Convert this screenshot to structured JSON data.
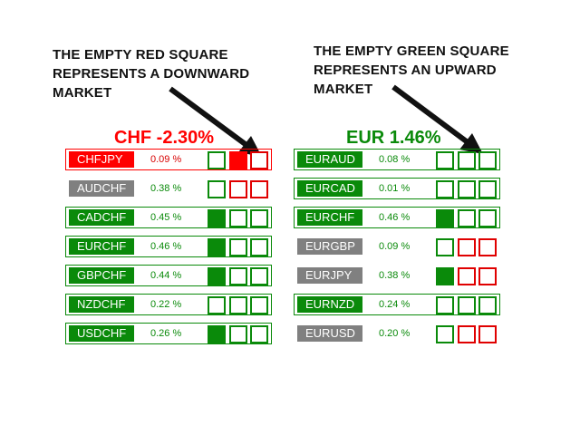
{
  "annotations": {
    "left": [
      "THE EMPTY RED SQUARE",
      "REPRESENTS A DOWNWARD",
      "MARKET"
    ],
    "right": [
      "THE EMPTY GREEN SQUARE",
      "REPRESENTS AN UPWARD",
      "MARKET"
    ]
  },
  "colors": {
    "red": "#ff0000",
    "green": "#0a8a0a",
    "gray": "#808080"
  },
  "panels": [
    {
      "heading": "CHF -2.30%",
      "heading_color": "red",
      "rows": [
        {
          "symbol": "CHFJPY",
          "percent": "0.09 %",
          "symbol_bg": "red",
          "percent_color": "red",
          "border": "red",
          "squares": [
            "empty-green",
            "filled-red",
            "empty-red"
          ]
        },
        {
          "symbol": "AUDCHF",
          "percent": "0.38 %",
          "symbol_bg": "gray",
          "percent_color": "green",
          "border": "none",
          "squares": [
            "empty-green",
            "empty-red",
            "empty-red"
          ]
        },
        {
          "symbol": "CADCHF",
          "percent": "0.45 %",
          "symbol_bg": "green",
          "percent_color": "green",
          "border": "green",
          "squares": [
            "filled-green",
            "empty-green",
            "empty-green"
          ]
        },
        {
          "symbol": "EURCHF",
          "percent": "0.46 %",
          "symbol_bg": "green",
          "percent_color": "green",
          "border": "green",
          "squares": [
            "filled-green",
            "empty-green",
            "empty-green"
          ]
        },
        {
          "symbol": "GBPCHF",
          "percent": "0.44 %",
          "symbol_bg": "green",
          "percent_color": "green",
          "border": "green",
          "squares": [
            "filled-green",
            "empty-green",
            "empty-green"
          ]
        },
        {
          "symbol": "NZDCHF",
          "percent": "0.22 %",
          "symbol_bg": "green",
          "percent_color": "green",
          "border": "green",
          "squares": [
            "empty-green",
            "empty-green",
            "empty-green"
          ]
        },
        {
          "symbol": "USDCHF",
          "percent": "0.26 %",
          "symbol_bg": "green",
          "percent_color": "green",
          "border": "green",
          "squares": [
            "filled-green",
            "empty-green",
            "empty-green"
          ]
        }
      ]
    },
    {
      "heading": "EUR 1.46%",
      "heading_color": "green",
      "rows": [
        {
          "symbol": "EURAUD",
          "percent": "0.08 %",
          "symbol_bg": "green",
          "percent_color": "green",
          "border": "green",
          "squares": [
            "empty-green",
            "empty-green",
            "empty-green"
          ]
        },
        {
          "symbol": "EURCAD",
          "percent": "0.01 %",
          "symbol_bg": "green",
          "percent_color": "green",
          "border": "green",
          "squares": [
            "empty-green",
            "empty-green",
            "empty-green"
          ]
        },
        {
          "symbol": "EURCHF",
          "percent": "0.46 %",
          "symbol_bg": "green",
          "percent_color": "green",
          "border": "green",
          "squares": [
            "filled-green",
            "empty-green",
            "empty-green"
          ]
        },
        {
          "symbol": "EURGBP",
          "percent": "0.09 %",
          "symbol_bg": "gray",
          "percent_color": "green",
          "border": "none",
          "squares": [
            "empty-green",
            "empty-red",
            "empty-red"
          ]
        },
        {
          "symbol": "EURJPY",
          "percent": "0.38 %",
          "symbol_bg": "gray",
          "percent_color": "green",
          "border": "none",
          "squares": [
            "filled-green",
            "empty-red",
            "empty-red"
          ]
        },
        {
          "symbol": "EURNZD",
          "percent": "0.24 %",
          "symbol_bg": "green",
          "percent_color": "green",
          "border": "green",
          "squares": [
            "empty-green",
            "empty-green",
            "empty-green"
          ]
        },
        {
          "symbol": "EURUSD",
          "percent": "0.20 %",
          "symbol_bg": "gray",
          "percent_color": "green",
          "border": "none",
          "squares": [
            "empty-green",
            "empty-red",
            "empty-red"
          ]
        }
      ]
    }
  ]
}
